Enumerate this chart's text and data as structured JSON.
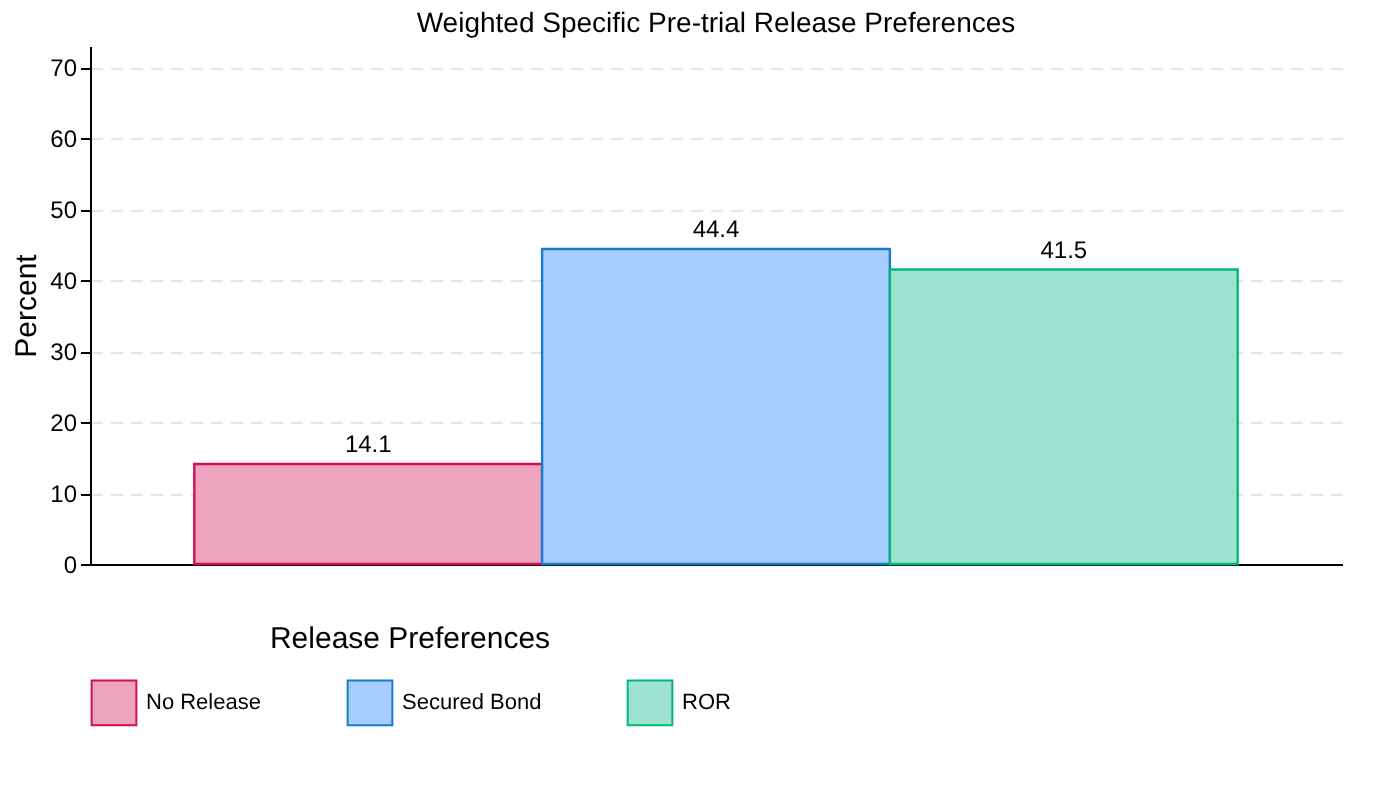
{
  "chart_data": {
    "type": "bar",
    "title": "Weighted Specific Pre-trial Release Preferences",
    "ylabel": "Percent",
    "legend_title": "Release Preferences",
    "categories": [
      null,
      null,
      null
    ],
    "series": [
      {
        "name": "No Release",
        "color": "#eea3be",
        "values": [
          14.1,
          null,
          null
        ]
      },
      {
        "name": "Secured Bond",
        "color": "#a6cdfd",
        "values": [
          null,
          44.4,
          null
        ]
      },
      {
        "name": "ROR",
        "color": "#9de3cf",
        "values": [
          null,
          null,
          41.5
        ]
      }
    ],
    "ylim": [
      0,
      73
    ],
    "yticks": [
      0,
      10,
      20,
      30,
      40,
      50,
      60,
      70
    ],
    "grid": "y",
    "legend": "bottom",
    "data_labels": true
  }
}
